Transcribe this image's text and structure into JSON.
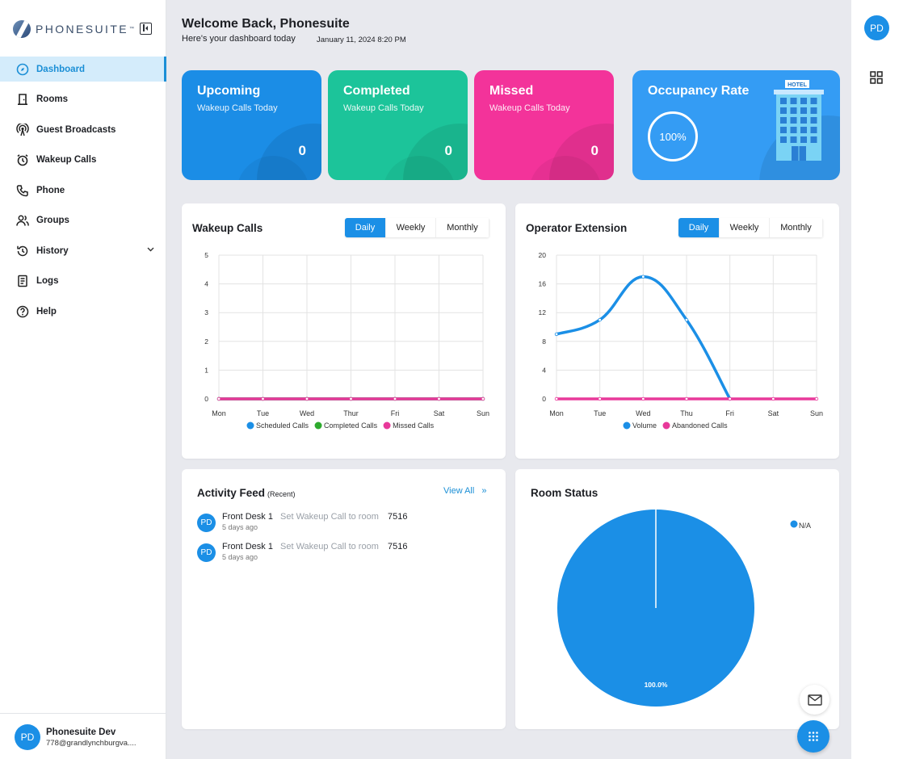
{
  "app": {
    "brand": "PHONESUITE",
    "brand_tm": "™"
  },
  "sidebar": {
    "items": [
      {
        "label": "Dashboard",
        "icon": "dashboard-icon"
      },
      {
        "label": "Rooms",
        "icon": "door-icon"
      },
      {
        "label": "Guest Broadcasts",
        "icon": "broadcast-icon"
      },
      {
        "label": "Wakeup Calls",
        "icon": "alarm-clock-icon"
      },
      {
        "label": "Phone",
        "icon": "phone-icon"
      },
      {
        "label": "Groups",
        "icon": "groups-icon"
      },
      {
        "label": "History",
        "icon": "history-icon"
      },
      {
        "label": "Logs",
        "icon": "logs-icon"
      },
      {
        "label": "Help",
        "icon": "help-icon"
      }
    ],
    "user": {
      "initials": "PD",
      "name": "Phonesuite Dev",
      "email": "778@grandlynchburgva...."
    }
  },
  "rail": {
    "initials": "PD"
  },
  "header": {
    "title": "Welcome Back, Phonesuite",
    "subtitle": "Here's your dashboard today",
    "date": "January 11, 2024 8:20 PM"
  },
  "stats": {
    "upcoming": {
      "title": "Upcoming",
      "subtitle": "Wakeup Calls Today",
      "value": "0"
    },
    "completed": {
      "title": "Completed",
      "subtitle": "Wakeup Calls Today",
      "value": "0"
    },
    "missed": {
      "title": "Missed",
      "subtitle": "Wakeup Calls Today",
      "value": "0"
    },
    "occupancy": {
      "title": "Occupancy Rate",
      "value": "100%",
      "hotel_sign": "HOTEL"
    }
  },
  "toggles": [
    "Daily",
    "Weekly",
    "Monthly"
  ],
  "colors": {
    "primary": "#1b8fe6",
    "green": "#1cc49a",
    "pink": "#f3339a",
    "scheduled": "#1b8fe6",
    "completed_calls": "#2eaa2e",
    "missed_calls": "#e8399a"
  },
  "feed": {
    "title": "Activity Feed",
    "recent": "(Recent)",
    "view_all": "View All",
    "items": [
      {
        "initials": "PD",
        "user": "Front Desk 1",
        "action": "Set Wakeup Call to room",
        "room": "7516",
        "time": "5 days ago"
      },
      {
        "initials": "PD",
        "user": "Front Desk 1",
        "action": "Set Wakeup Call to room",
        "room": "7516",
        "time": "5 days ago"
      }
    ]
  },
  "chart_data": [
    {
      "type": "line",
      "title": "Wakeup Calls",
      "categories": [
        "Mon",
        "Tue",
        "Wed",
        "Thur",
        "Fri",
        "Sat",
        "Sun"
      ],
      "series": [
        {
          "name": "Scheduled Calls",
          "values": [
            0,
            0,
            0,
            0,
            0,
            0,
            0
          ]
        },
        {
          "name": "Completed Calls",
          "values": [
            0,
            0,
            0,
            0,
            0,
            0,
            0
          ]
        },
        {
          "name": "Missed Calls",
          "values": [
            0,
            0,
            0,
            0,
            0,
            0,
            0
          ]
        }
      ],
      "ylim": [
        0,
        5
      ],
      "yticks": [
        0,
        1,
        2,
        3,
        4,
        5
      ],
      "grid": true,
      "legend": "bottom"
    },
    {
      "type": "line",
      "title": "Operator Extension",
      "categories": [
        "Mon",
        "Tue",
        "Wed",
        "Thu",
        "Fri",
        "Sat",
        "Sun"
      ],
      "series": [
        {
          "name": "Volume",
          "values": [
            9,
            11,
            17,
            11,
            0,
            null,
            null
          ]
        },
        {
          "name": "Abandoned Calls",
          "values": [
            0,
            0,
            0,
            0,
            0,
            0,
            0
          ]
        }
      ],
      "ylim": [
        0,
        20
      ],
      "yticks": [
        0,
        4,
        8,
        12,
        16,
        20
      ],
      "grid": true,
      "legend": "bottom"
    },
    {
      "type": "pie",
      "title": "Room Status",
      "labels": [
        "N/A"
      ],
      "values": [
        100
      ],
      "value_labels": [
        "100.0%"
      ],
      "legend": "top-right"
    }
  ]
}
